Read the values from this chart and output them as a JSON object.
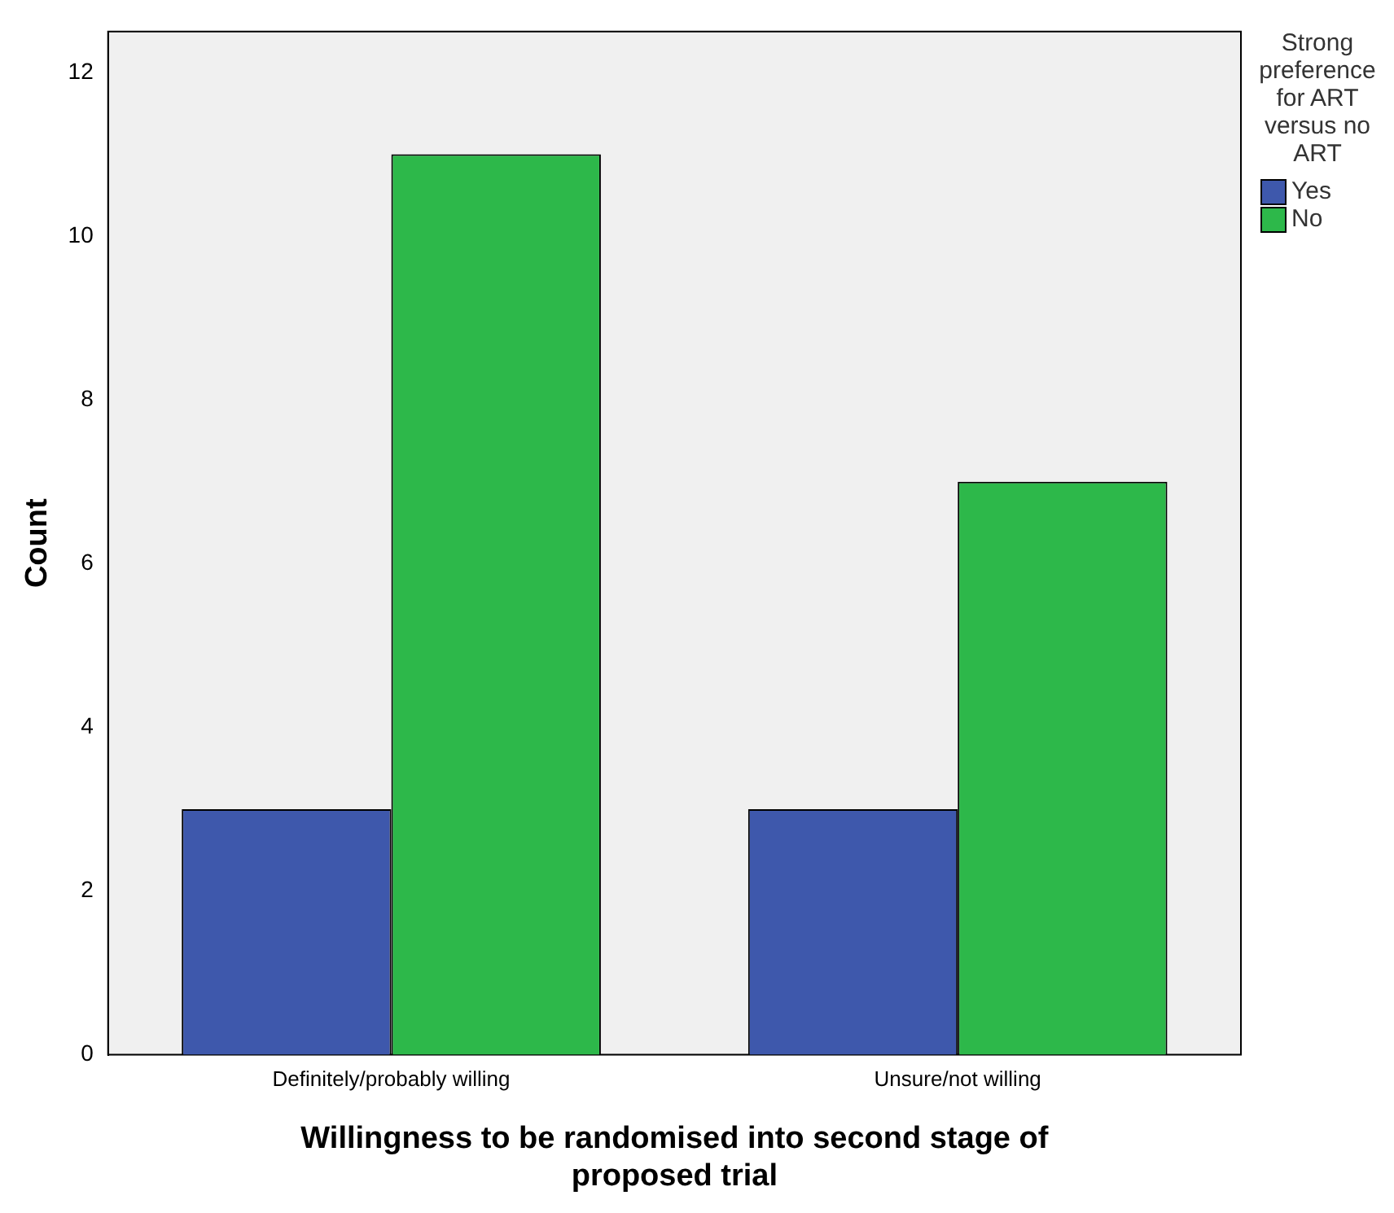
{
  "chart_data": {
    "type": "bar",
    "xlabel": "Willingness to be randomised into second stage of proposed trial",
    "ylabel": "Count",
    "legend_title": "Strong preference for ART versus no ART",
    "categories": [
      "Definitely/probably willing",
      "Unsure/not willing"
    ],
    "series": [
      {
        "name": "Yes",
        "color": "#3e58ac",
        "values": [
          3,
          3
        ]
      },
      {
        "name": "No",
        "color": "#2db84a",
        "values": [
          11,
          7
        ]
      }
    ],
    "ylim": [
      0,
      12.5
    ],
    "yticks": [
      0,
      2,
      4,
      6,
      8,
      10,
      12
    ],
    "grid": false,
    "legend": "top right"
  }
}
